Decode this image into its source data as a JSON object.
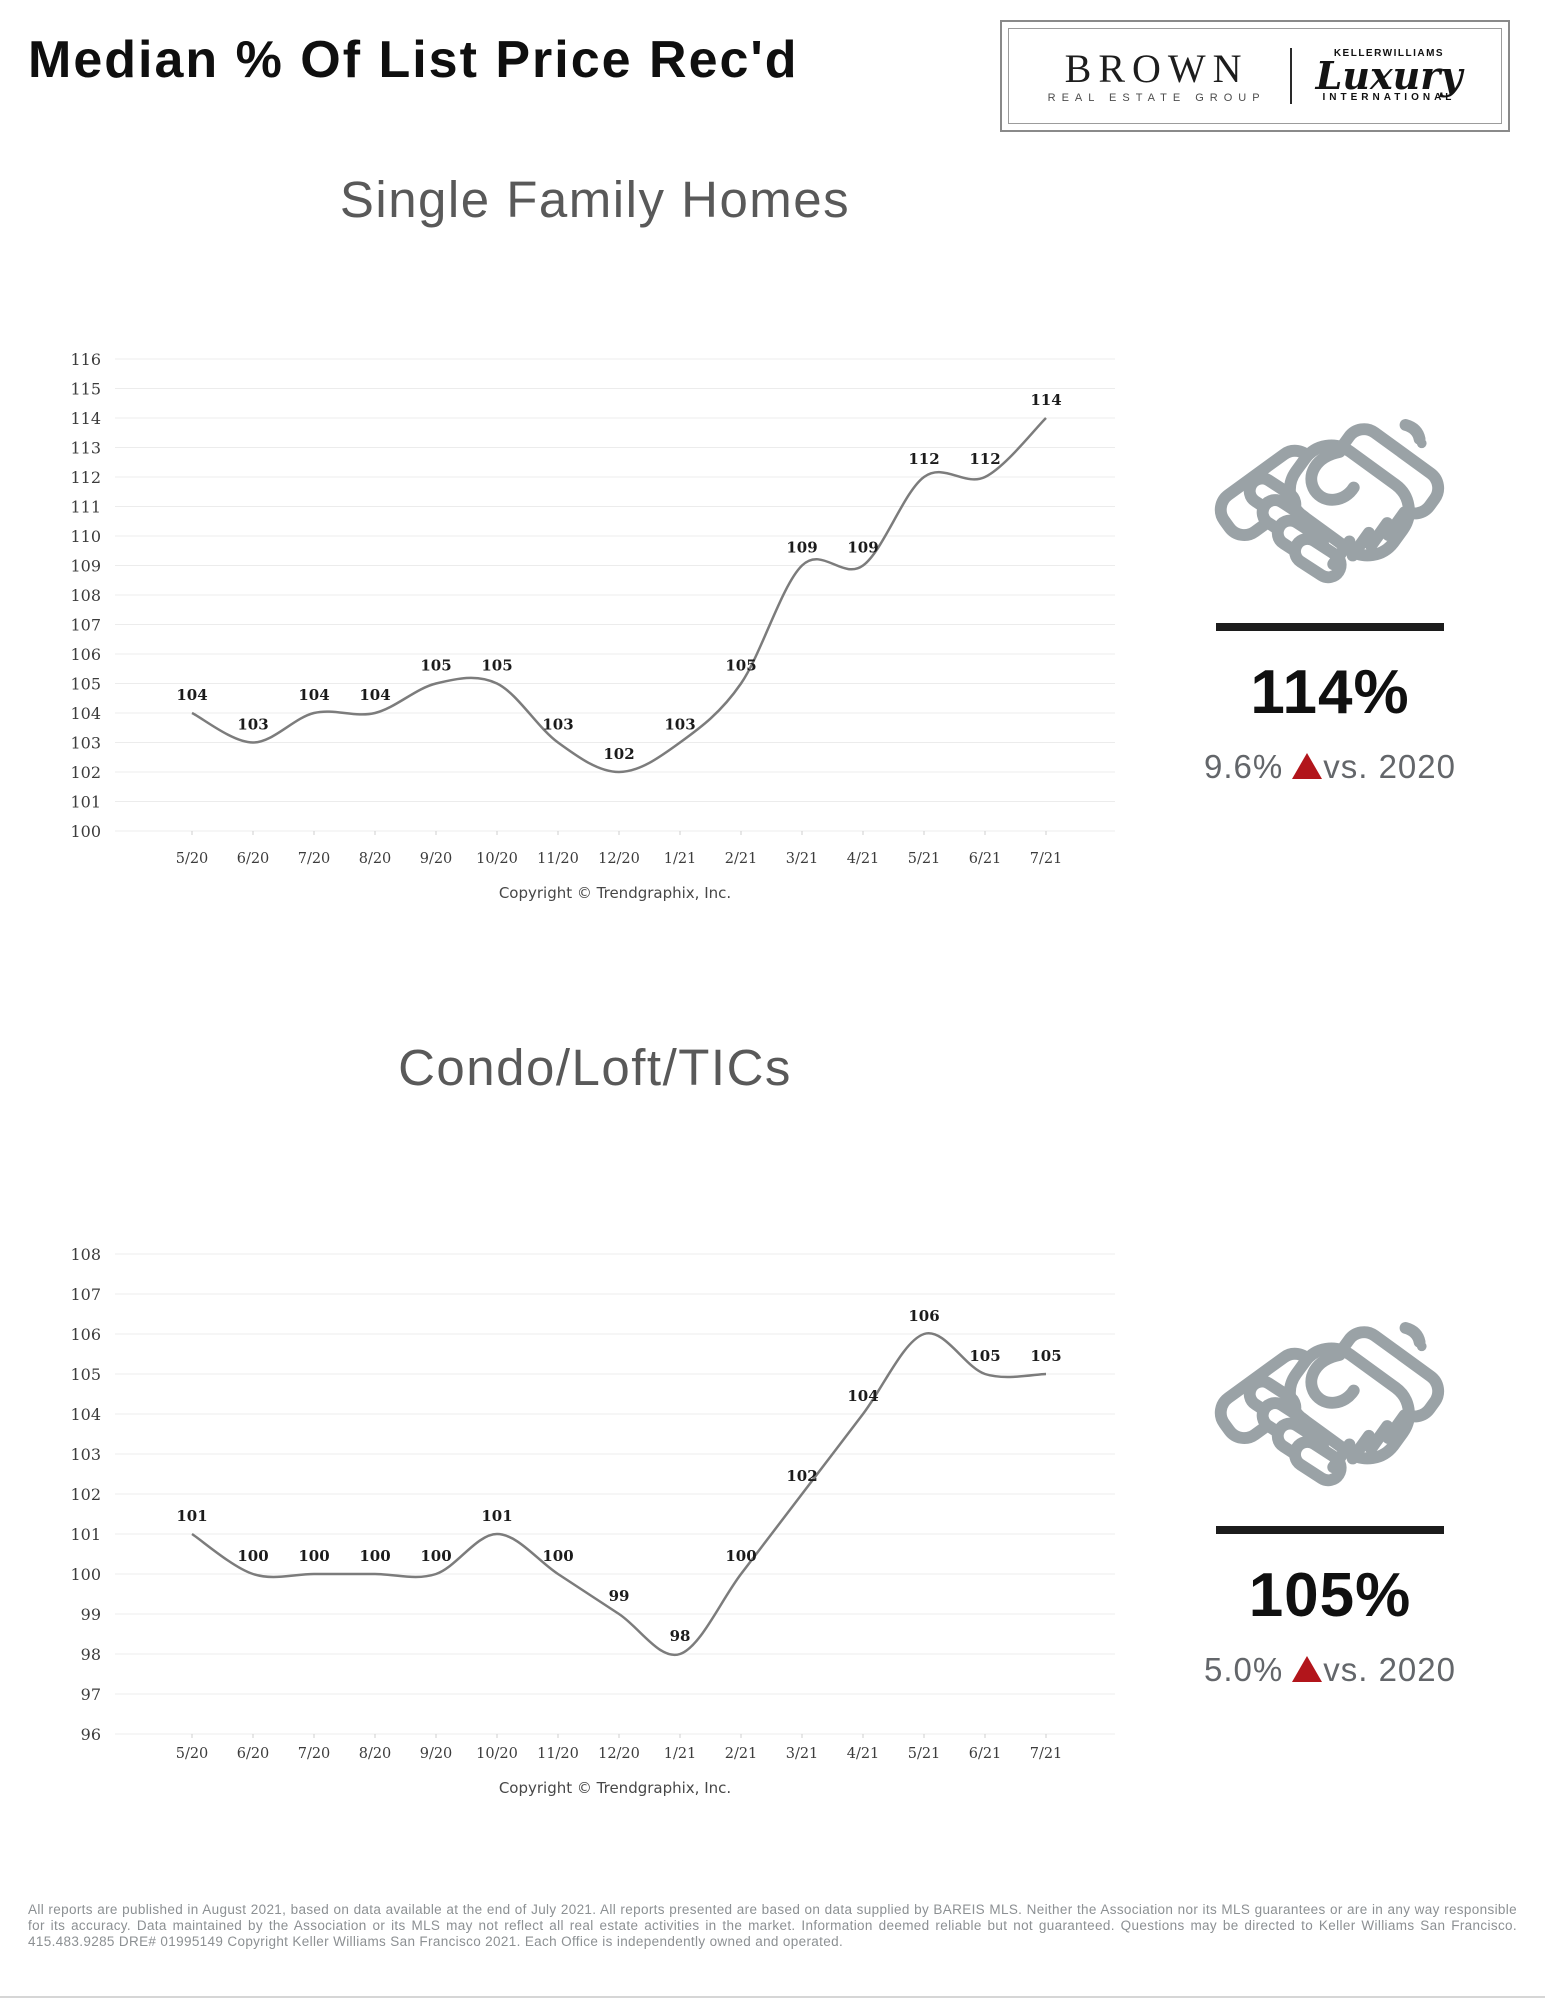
{
  "header": {
    "title": "Median % Of List Price Rec'd",
    "logo": {
      "brand": "BROWN",
      "brand_sub": "REAL ESTATE GROUP",
      "kw_top": "KELLERWILLIAMS",
      "kw_script": "Luxury",
      "kw_bottom": "INTERNATIONAL"
    }
  },
  "sections": [
    {
      "title": "Single Family Homes",
      "stat": {
        "value": "114%",
        "change_value": "9.6%",
        "change_label": "vs. 2020"
      },
      "copyright": "Copyright © Trendgraphix, Inc."
    },
    {
      "title": "Condo/Loft/TICs",
      "stat": {
        "value": "105%",
        "change_value": "5.0%",
        "change_label": "vs. 2020"
      },
      "copyright": "Copyright © Trendgraphix, Inc."
    }
  ],
  "chart_data": [
    {
      "type": "line",
      "title": "Single Family Homes",
      "categories": [
        "5/20",
        "6/20",
        "7/20",
        "8/20",
        "9/20",
        "10/20",
        "11/20",
        "12/20",
        "1/21",
        "2/21",
        "3/21",
        "4/21",
        "5/21",
        "6/21",
        "7/21"
      ],
      "values": [
        104,
        103,
        104,
        104,
        105,
        105,
        103,
        102,
        103,
        105,
        109,
        109,
        112,
        112,
        114
      ],
      "ylim": [
        100,
        116
      ],
      "ytick_step": 1,
      "grid": true,
      "smooth": true,
      "data_labels": true,
      "legend": "none",
      "line_color": "#7c7c7c",
      "xlabel": "",
      "ylabel": ""
    },
    {
      "type": "line",
      "title": "Condo/Loft/TICs",
      "categories": [
        "5/20",
        "6/20",
        "7/20",
        "8/20",
        "9/20",
        "10/20",
        "11/20",
        "12/20",
        "1/21",
        "2/21",
        "3/21",
        "4/21",
        "5/21",
        "6/21",
        "7/21"
      ],
      "values": [
        101,
        100,
        100,
        100,
        100,
        101,
        100,
        99,
        98,
        100,
        102,
        104,
        106,
        105,
        105
      ],
      "ylim": [
        96,
        108
      ],
      "ytick_step": 1,
      "grid": true,
      "smooth": true,
      "data_labels": true,
      "legend": "none",
      "line_color": "#7c7c7c",
      "xlabel": "",
      "ylabel": ""
    }
  ],
  "footer": {
    "disclaimer": "All reports are published in August 2021, based on data available at the end of July 2021. All reports presented are based on data supplied by BAREIS MLS. Neither the Association nor its MLS guarantees or are in any way responsible for its accuracy. Data maintained by the Association or its MLS may not reflect all real estate activities in the market. Information deemed reliable but not guaranteed. Questions may be directed to Keller Williams San Francisco. 415.483.9285 DRE# 01995149 Copyright Keller Williams San Francisco 2021. Each Office is independently owned and operated."
  },
  "colors": {
    "accent_red": "#b2151b",
    "icon_gray": "#9aa2a6",
    "line_gray": "#7c7c7c",
    "title_gray": "#595959"
  }
}
